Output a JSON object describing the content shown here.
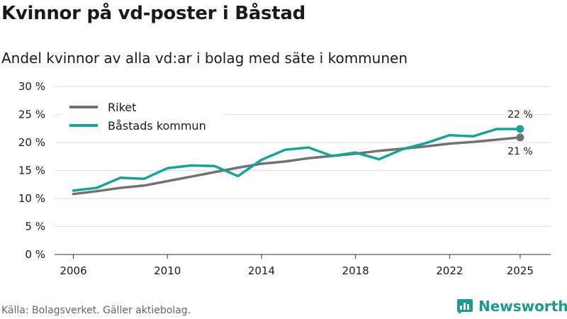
{
  "title": "Kvinnor på vd-poster i Båstad",
  "subtitle": "Andel kvinnor av alla vd:ar i bolag med säte i kommunen",
  "source": "Källa: Bolagsverket. Gäller aktiebolag.",
  "brand": {
    "name": "Newsworthy",
    "icon": "bar-chart-logo-icon",
    "color": "#1c9a8d"
  },
  "chart_data": {
    "type": "line",
    "title": "Kvinnor på vd-poster i Båstad",
    "xlabel": "",
    "ylabel": "",
    "xlim": [
      2005.2,
      2026.3
    ],
    "ylim": [
      0,
      30
    ],
    "grid": true,
    "legend_position": "top-left",
    "x_ticks": [
      2006,
      2010,
      2014,
      2018,
      2022,
      2025
    ],
    "y_ticks": [
      0,
      5,
      10,
      15,
      20,
      25,
      30
    ],
    "y_tick_labels": [
      "0 %",
      "5 %",
      "10 %",
      "15 %",
      "20 %",
      "25 %",
      "30 %"
    ],
    "x": [
      2006,
      2007,
      2008,
      2009,
      2010,
      2011,
      2012,
      2013,
      2014,
      2015,
      2016,
      2017,
      2018,
      2019,
      2020,
      2021,
      2022,
      2023,
      2024,
      2025
    ],
    "series": [
      {
        "name": "Riket",
        "color": "#727272",
        "end_label": "21 %",
        "values": [
          10.8,
          11.3,
          11.9,
          12.3,
          13.1,
          13.9,
          14.7,
          15.5,
          16.2,
          16.6,
          17.2,
          17.6,
          18.0,
          18.5,
          18.9,
          19.3,
          19.8,
          20.1,
          20.5,
          20.9
        ]
      },
      {
        "name": "Båstads kommun",
        "color": "#1aa199",
        "end_label": "22 %",
        "values": [
          11.4,
          11.9,
          13.7,
          13.5,
          15.4,
          15.9,
          15.8,
          14.0,
          16.9,
          18.7,
          19.1,
          17.6,
          18.2,
          17.0,
          18.8,
          19.9,
          21.3,
          21.1,
          22.4,
          22.4
        ]
      }
    ]
  }
}
